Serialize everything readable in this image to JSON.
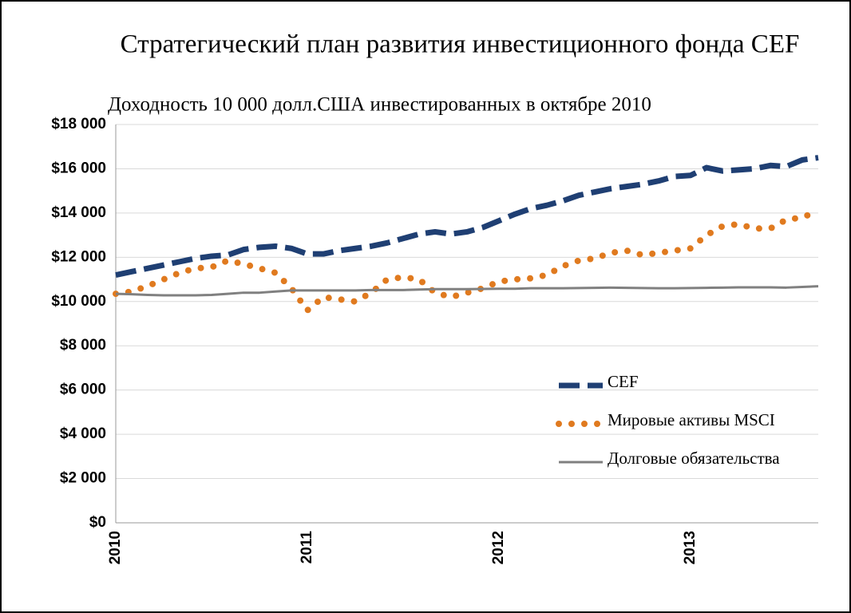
{
  "chart_data": {
    "type": "line",
    "title": "Стратегический план развития инвестиционного фонда CEF",
    "subtitle": "Доходность 10 000 долл.США инвестированных в октябре 2010",
    "categories": [
      "2010",
      null,
      null,
      null,
      null,
      null,
      null,
      null,
      null,
      null,
      null,
      null,
      "2011",
      null,
      null,
      null,
      null,
      null,
      null,
      null,
      null,
      null,
      null,
      null,
      "2012",
      null,
      null,
      null,
      null,
      null,
      null,
      null,
      null,
      null,
      null,
      null,
      "2013",
      null,
      null,
      null,
      null,
      null,
      null,
      null,
      null
    ],
    "series": [
      {
        "name": "CEF",
        "color": "#1f3f73",
        "style": "dashed",
        "values": [
          11200,
          11350,
          11500,
          11650,
          11800,
          11950,
          12050,
          12100,
          12350,
          12450,
          12500,
          12400,
          12150,
          12150,
          12300,
          12400,
          12500,
          12650,
          12850,
          13050,
          13150,
          13050,
          13150,
          13350,
          13650,
          13950,
          14200,
          14350,
          14550,
          14800,
          14950,
          15100,
          15200,
          15300,
          15450,
          15650,
          15700,
          16050,
          15900,
          15950,
          16000,
          16150,
          16100,
          16400,
          16500
        ]
      },
      {
        "name": "Мировые активы MSCI",
        "color": "#e07a1f",
        "style": "dotted",
        "values": [
          10350,
          10450,
          10700,
          11000,
          11300,
          11500,
          11550,
          11850,
          11700,
          11500,
          11300,
          10600,
          9600,
          10200,
          10100,
          10000,
          10400,
          11000,
          11100,
          11000,
          10400,
          10200,
          10400,
          10600,
          10900,
          11000,
          11050,
          11200,
          11600,
          11850,
          11950,
          12200,
          12300,
          12100,
          12200,
          12300,
          12400,
          13000,
          13400,
          13500,
          13300,
          13300,
          13700,
          13800,
          14100
        ]
      },
      {
        "name": "Долговые обязательства",
        "color": "#808080",
        "style": "solid",
        "values": [
          10350,
          10330,
          10300,
          10280,
          10280,
          10280,
          10300,
          10350,
          10400,
          10400,
          10450,
          10500,
          10500,
          10500,
          10500,
          10500,
          10520,
          10520,
          10520,
          10540,
          10560,
          10560,
          10560,
          10570,
          10580,
          10580,
          10600,
          10600,
          10600,
          10610,
          10620,
          10630,
          10620,
          10610,
          10600,
          10600,
          10610,
          10620,
          10630,
          10640,
          10640,
          10640,
          10630,
          10660,
          10690
        ]
      }
    ],
    "ylim": [
      0,
      18000
    ],
    "yticks": [
      {
        "value": 0,
        "label": "$0"
      },
      {
        "value": 2000,
        "label": "$2 000"
      },
      {
        "value": 4000,
        "label": "$4 000"
      },
      {
        "value": 6000,
        "label": "$6 000"
      },
      {
        "value": 8000,
        "label": "$8 000"
      },
      {
        "value": 10000,
        "label": "$10 000"
      },
      {
        "value": 12000,
        "label": "$12 000"
      },
      {
        "value": 14000,
        "label": "$14 000"
      },
      {
        "value": 16000,
        "label": "$16 000"
      },
      {
        "value": 18000,
        "label": "$18 000"
      }
    ],
    "grid": true,
    "legend": "right"
  }
}
